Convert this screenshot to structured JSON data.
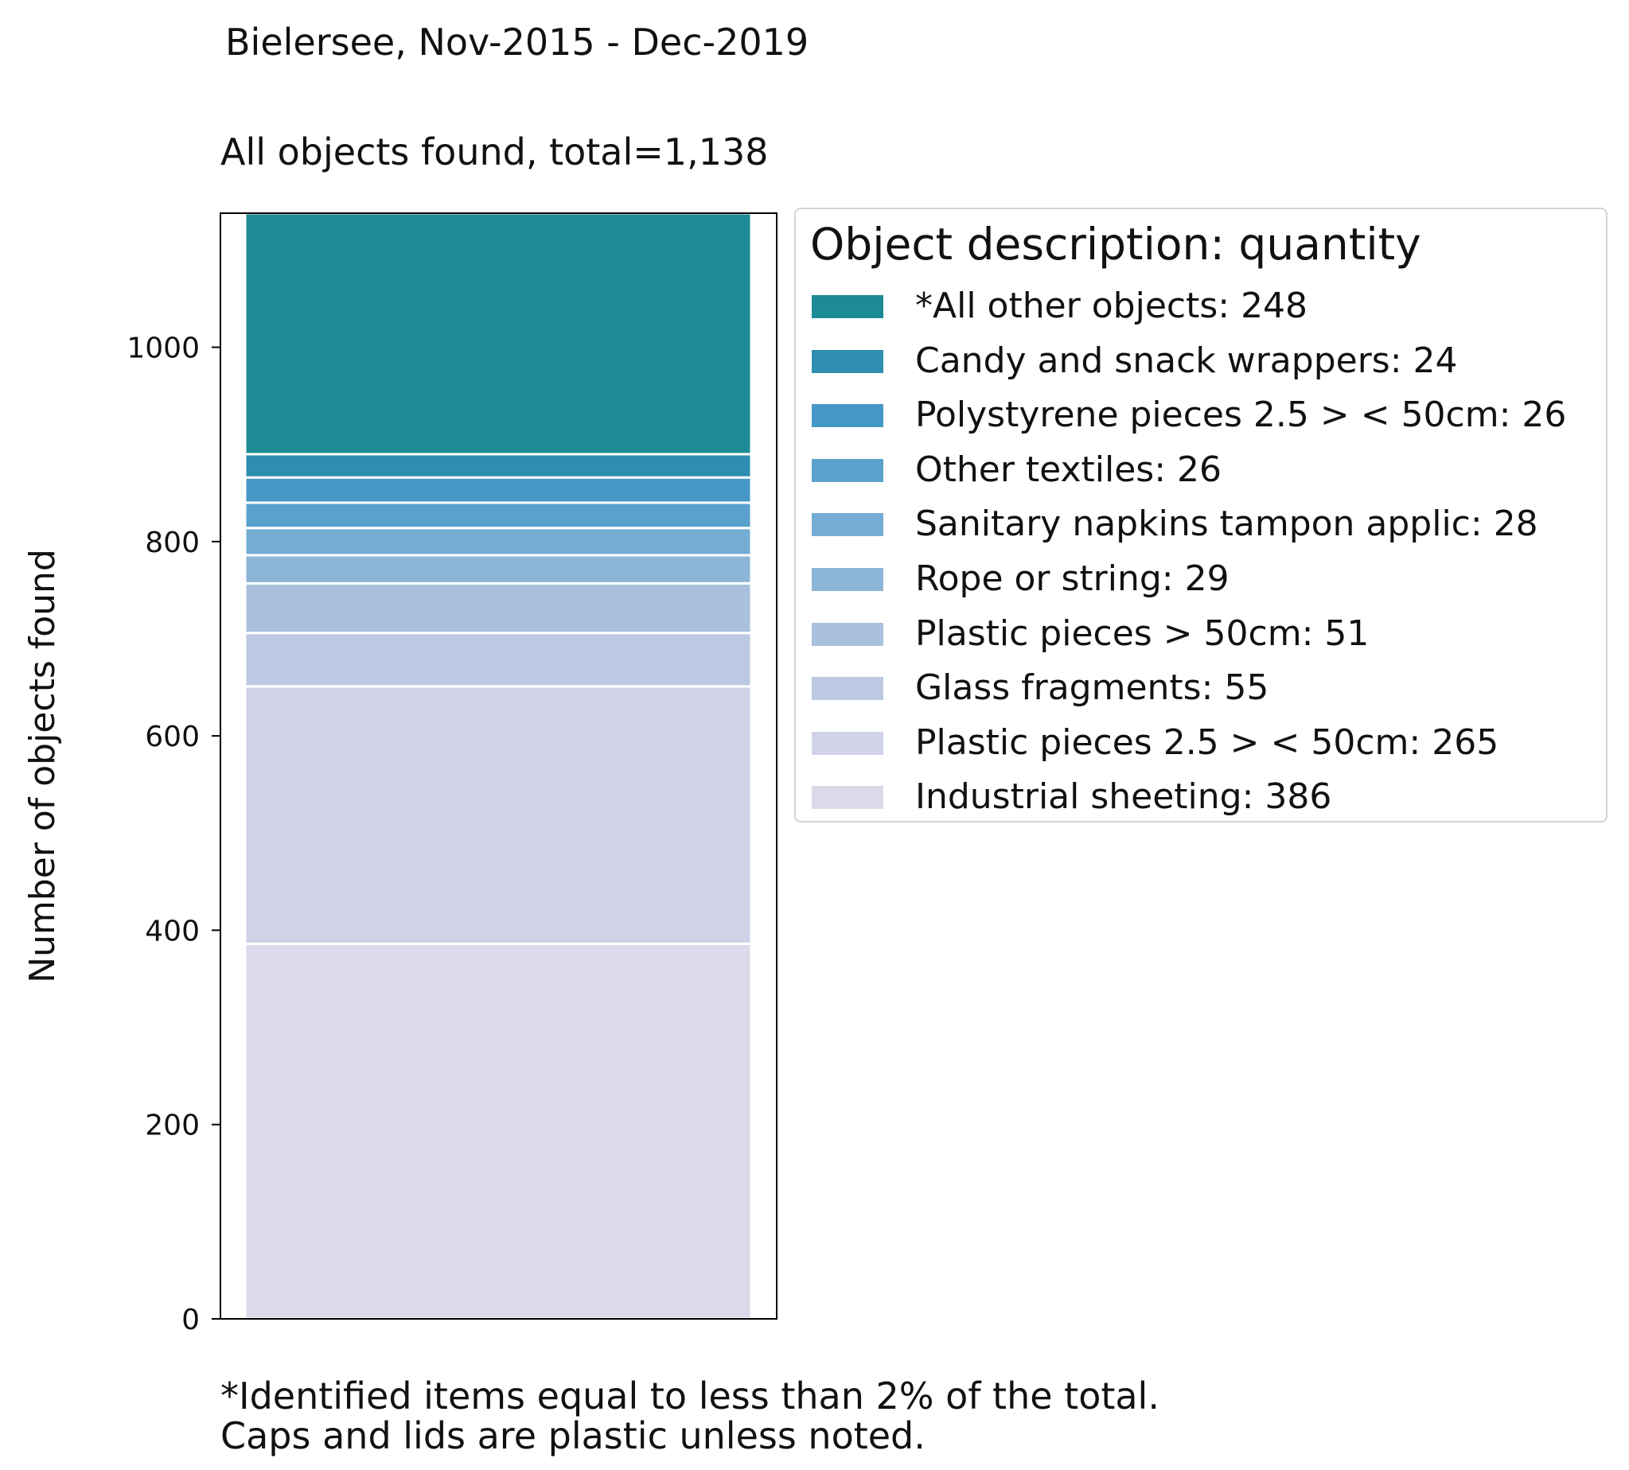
{
  "chart_data": {
    "type": "bar",
    "stacked": true,
    "suptitle": "Bielersee, Nov-2015 - Dec-2019",
    "title": "All objects found,  total=1,138",
    "ylabel": "Number of objects found",
    "xlabel": "",
    "ylim": [
      0,
      1138
    ],
    "yticks": [
      0,
      200,
      400,
      600,
      800,
      1000
    ],
    "legend_title": "Object description: quantity",
    "legend_placement": "upper right, outside plot",
    "grid": false,
    "series": [
      {
        "name": "Industrial sheeting: 386",
        "value": 386,
        "color": "#dcdaea"
      },
      {
        "name": "Plastic pieces 2.5 > < 50cm: 265",
        "value": 265,
        "color": "#d0d3e7"
      },
      {
        "name": "Glass fragments: 55",
        "value": 55,
        "color": "#bdc9e2"
      },
      {
        "name": "Plastic pieces > 50cm: 51",
        "value": 51,
        "color": "#a9c1dc"
      },
      {
        "name": "Rope or string: 29",
        "value": 29,
        "color": "#8db5d8"
      },
      {
        "name": "Sanitary napkins tampon applic: 28",
        "value": 28,
        "color": "#74acd3"
      },
      {
        "name": "Other textiles: 26",
        "value": 26,
        "color": "#5aa1cd"
      },
      {
        "name": "Polystyrene pieces 2.5 > < 50cm: 26",
        "value": 26,
        "color": "#4697c5"
      },
      {
        "name": "Candy and snack wrappers: 24",
        "value": 24,
        "color": "#2e8eaf"
      },
      {
        "name": "*All other objects: 248",
        "value": 248,
        "color": "#1d8b93"
      }
    ]
  },
  "footnote": [
    "*Identified items equal to less than 2% of the total.",
    "Caps and lids are plastic unless noted."
  ]
}
